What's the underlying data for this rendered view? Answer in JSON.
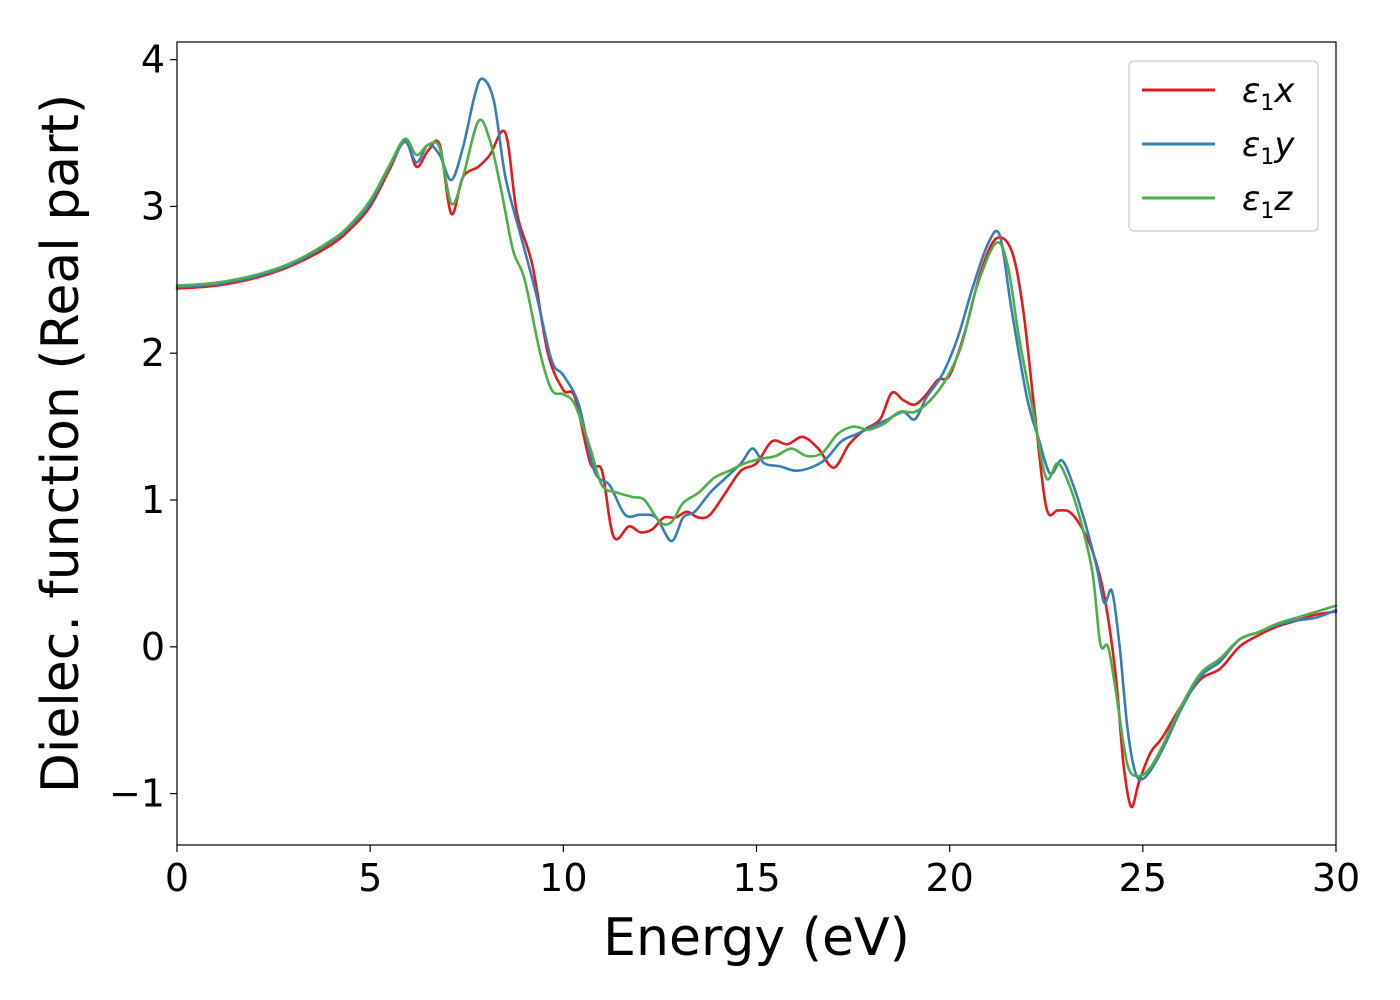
{
  "chart_data": {
    "type": "line",
    "xlabel": "Energy (eV)",
    "ylabel": "Dielec. function (Real part)",
    "xlim": [
      0,
      30
    ],
    "ylim": [
      -1.35,
      4.12
    ],
    "xticks": [
      0,
      5,
      10,
      15,
      20,
      25,
      30
    ],
    "yticks": [
      -1,
      0,
      1,
      2,
      3,
      4
    ],
    "grid": false,
    "legend_position": "top-right",
    "series": [
      {
        "name": "ε1x",
        "legend_base": "ε",
        "legend_sub": "1",
        "legend_suffix": "x",
        "color": "#e41a1c",
        "x": [
          0,
          1,
          2,
          3,
          4,
          4.5,
          5,
          5.5,
          5.9,
          6.2,
          6.5,
          6.8,
          7.1,
          7.4,
          7.8,
          8.1,
          8.5,
          8.8,
          9.2,
          9.6,
          10.0,
          10.3,
          10.7,
          11.0,
          11.3,
          11.7,
          12.0,
          12.3,
          12.6,
          12.9,
          13.2,
          13.5,
          13.8,
          14.2,
          14.6,
          15.0,
          15.4,
          15.8,
          16.2,
          16.6,
          17.0,
          17.4,
          17.8,
          18.2,
          18.5,
          18.8,
          19.1,
          19.4,
          19.7,
          20.0,
          20.4,
          20.8,
          21.2,
          21.6,
          21.9,
          22.2,
          22.5,
          22.8,
          23.1,
          23.4,
          23.7,
          24.0,
          24.3,
          24.5,
          24.7,
          24.9,
          25.2,
          25.5,
          26.0,
          26.5,
          27.0,
          27.5,
          28.0,
          28.5,
          29.0,
          29.5,
          30.0
        ],
        "y": [
          2.44,
          2.46,
          2.51,
          2.6,
          2.74,
          2.85,
          3.0,
          3.25,
          3.45,
          3.27,
          3.38,
          3.42,
          2.95,
          3.2,
          3.27,
          3.35,
          3.5,
          2.95,
          2.6,
          2.0,
          1.75,
          1.7,
          1.25,
          1.2,
          0.75,
          0.82,
          0.78,
          0.8,
          0.88,
          0.88,
          0.92,
          0.88,
          0.9,
          1.05,
          1.2,
          1.25,
          1.4,
          1.38,
          1.43,
          1.35,
          1.22,
          1.38,
          1.48,
          1.55,
          1.73,
          1.68,
          1.65,
          1.72,
          1.82,
          1.85,
          2.15,
          2.55,
          2.78,
          2.7,
          2.3,
          1.6,
          0.95,
          0.93,
          0.92,
          0.82,
          0.65,
          0.35,
          -0.2,
          -0.8,
          -1.09,
          -0.92,
          -0.72,
          -0.62,
          -0.4,
          -0.22,
          -0.15,
          0.0,
          0.08,
          0.14,
          0.18,
          0.22,
          0.24
        ]
      },
      {
        "name": "ε1y",
        "legend_base": "ε",
        "legend_sub": "1",
        "legend_suffix": "y",
        "color": "#377eb8",
        "x": [
          0,
          1,
          2,
          3,
          4,
          4.5,
          5,
          5.5,
          5.9,
          6.2,
          6.5,
          6.8,
          7.1,
          7.4,
          7.7,
          7.9,
          8.2,
          8.5,
          8.9,
          9.3,
          9.7,
          10.0,
          10.4,
          10.8,
          11.2,
          11.6,
          12.0,
          12.4,
          12.8,
          13.1,
          13.4,
          13.8,
          14.2,
          14.6,
          14.9,
          15.2,
          15.6,
          16.0,
          16.4,
          16.8,
          17.2,
          17.6,
          18.0,
          18.4,
          18.8,
          19.1,
          19.4,
          19.8,
          20.2,
          20.6,
          21.0,
          21.3,
          21.6,
          22.0,
          22.3,
          22.6,
          22.9,
          23.2,
          23.5,
          23.8,
          24.0,
          24.2,
          24.4,
          24.6,
          24.8,
          25.0,
          25.3,
          25.6,
          26.0,
          26.5,
          27.0,
          27.5,
          28.0,
          28.5,
          29.0,
          29.5,
          30.0
        ],
        "y": [
          2.45,
          2.47,
          2.52,
          2.61,
          2.76,
          2.87,
          3.02,
          3.27,
          3.44,
          3.3,
          3.42,
          3.35,
          3.18,
          3.4,
          3.75,
          3.87,
          3.72,
          3.2,
          2.8,
          2.4,
          1.95,
          1.85,
          1.65,
          1.2,
          1.1,
          0.9,
          0.9,
          0.88,
          0.72,
          0.88,
          0.92,
          1.05,
          1.15,
          1.25,
          1.35,
          1.25,
          1.23,
          1.2,
          1.22,
          1.28,
          1.4,
          1.45,
          1.5,
          1.55,
          1.6,
          1.55,
          1.7,
          1.85,
          2.1,
          2.45,
          2.75,
          2.8,
          2.3,
          1.7,
          1.42,
          1.18,
          1.27,
          1.1,
          0.85,
          0.55,
          0.3,
          0.38,
          0.0,
          -0.55,
          -0.85,
          -0.9,
          -0.8,
          -0.65,
          -0.42,
          -0.2,
          -0.1,
          0.05,
          0.1,
          0.15,
          0.18,
          0.2,
          0.25
        ]
      },
      {
        "name": "ε1z",
        "legend_base": "ε",
        "legend_sub": "1",
        "legend_suffix": "z",
        "color": "#4daf4a",
        "x": [
          0,
          1,
          2,
          3,
          4,
          4.5,
          5,
          5.5,
          5.9,
          6.2,
          6.5,
          6.8,
          7.1,
          7.4,
          7.8,
          8.1,
          8.4,
          8.7,
          9.0,
          9.4,
          9.7,
          10.0,
          10.3,
          10.7,
          11.0,
          11.4,
          11.8,
          12.1,
          12.5,
          12.8,
          13.1,
          13.5,
          13.9,
          14.3,
          14.7,
          15.1,
          15.5,
          15.9,
          16.3,
          16.7,
          17.1,
          17.5,
          17.9,
          18.3,
          18.7,
          19.1,
          19.5,
          19.9,
          20.3,
          20.7,
          21.2,
          21.5,
          21.8,
          22.2,
          22.5,
          22.8,
          23.1,
          23.4,
          23.7,
          23.9,
          24.1,
          24.3,
          24.6,
          24.9,
          25.2,
          25.5,
          26.0,
          26.5,
          27.0,
          27.5,
          28.0,
          28.5,
          29.0,
          29.5,
          30.0
        ],
        "y": [
          2.46,
          2.48,
          2.53,
          2.62,
          2.77,
          2.88,
          3.04,
          3.28,
          3.46,
          3.35,
          3.42,
          3.4,
          3.02,
          3.2,
          3.58,
          3.45,
          3.1,
          2.7,
          2.5,
          2.0,
          1.75,
          1.72,
          1.65,
          1.35,
          1.1,
          1.05,
          1.02,
          1.0,
          0.85,
          0.85,
          0.98,
          1.05,
          1.15,
          1.2,
          1.25,
          1.28,
          1.3,
          1.35,
          1.3,
          1.32,
          1.45,
          1.5,
          1.48,
          1.52,
          1.6,
          1.6,
          1.68,
          1.82,
          2.05,
          2.45,
          2.75,
          2.6,
          2.1,
          1.55,
          1.15,
          1.25,
          1.1,
          0.85,
          0.5,
          0.02,
          0.0,
          -0.3,
          -0.8,
          -0.88,
          -0.82,
          -0.68,
          -0.4,
          -0.18,
          -0.08,
          0.05,
          0.1,
          0.16,
          0.2,
          0.24,
          0.28
        ]
      }
    ]
  }
}
